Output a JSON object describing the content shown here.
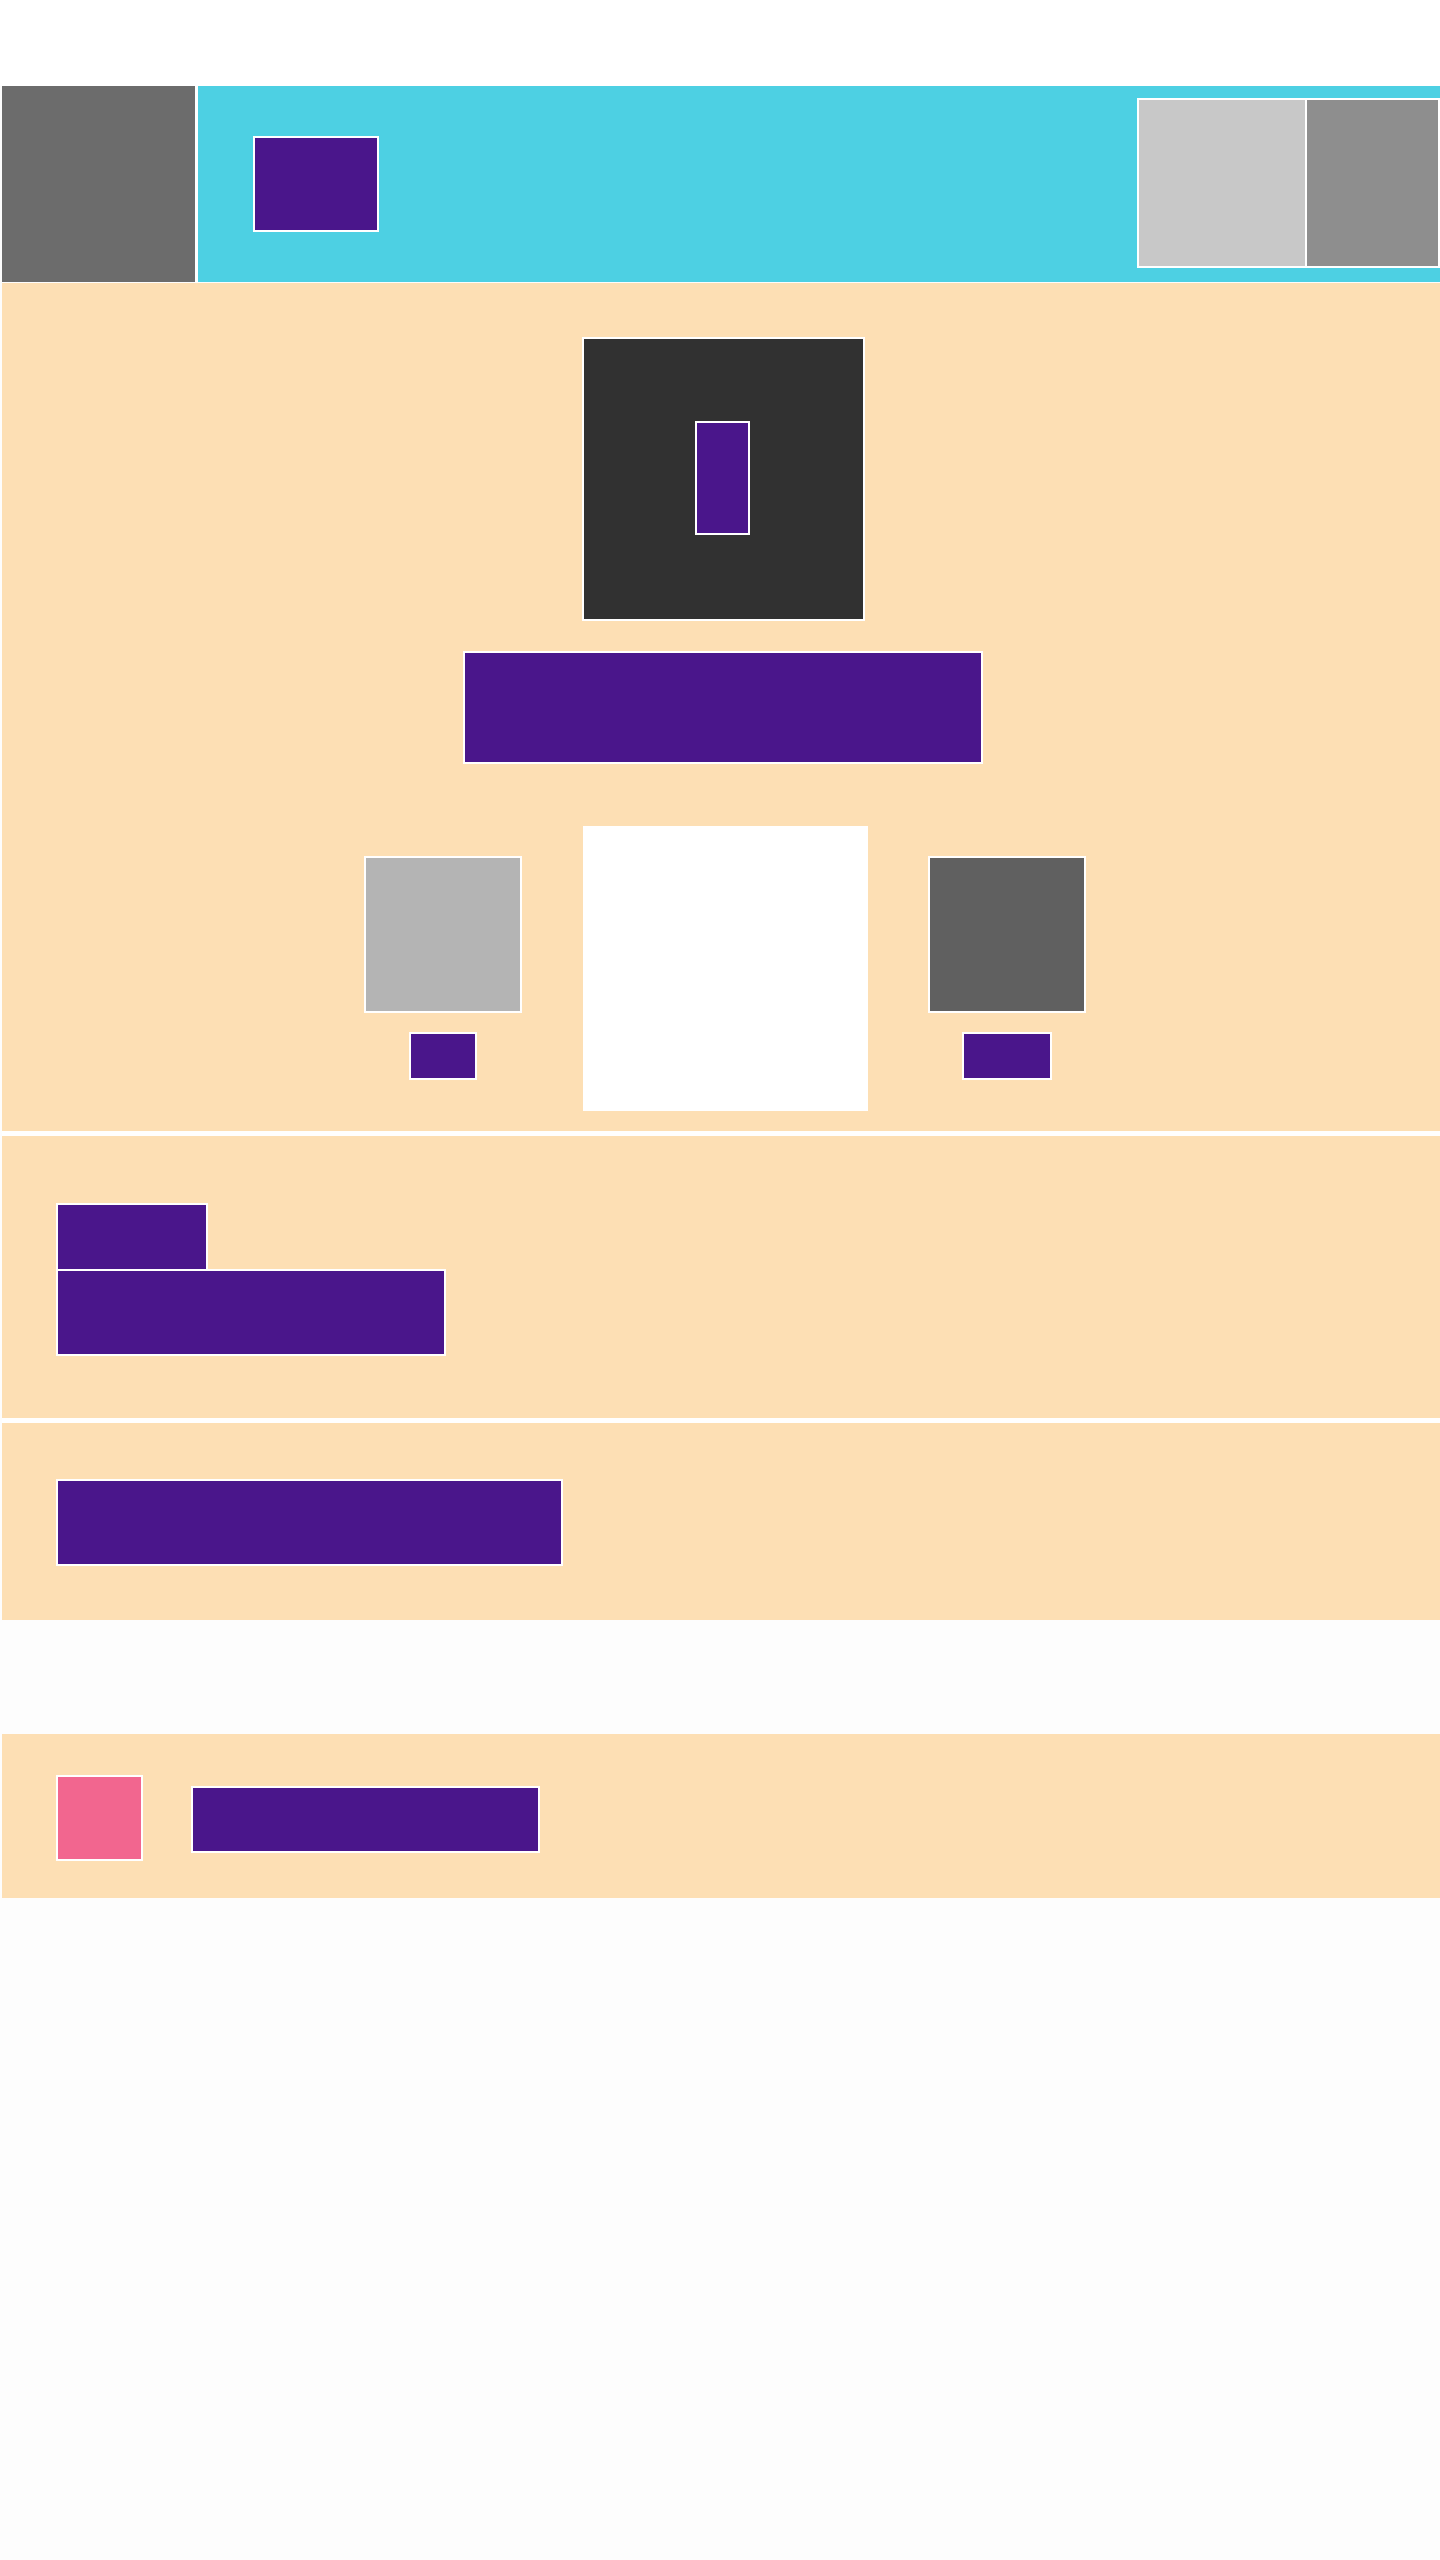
{
  "colors": {
    "page_background": "#fdfdfd",
    "header_bar": "#4dd0e3",
    "section_background": "#fddfb4",
    "placeholder_block": "#4a168b",
    "accent_square": "#f2668f",
    "header_left_tile": "#6c6c6c",
    "header_right_tile_1": "#c8c8c8",
    "header_right_tile_2": "#8e8e8e",
    "hero_tile": "#313131",
    "option_left_tile": "#b4b4b4",
    "option_center_tile": "#ffffff",
    "option_right_tile": "#606060",
    "separator": "#ffffff"
  }
}
